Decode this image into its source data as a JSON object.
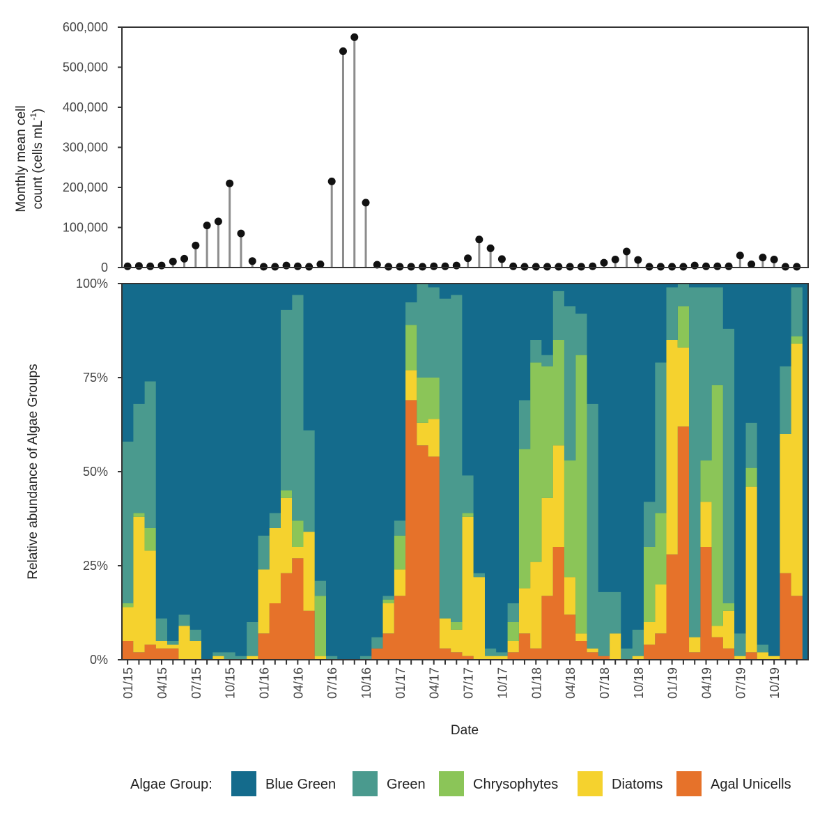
{
  "chart_data": [
    {
      "type": "lollipop",
      "ylabel_line1": "Monthly mean cell",
      "ylabel_line2": "count (cells mL",
      "ylabel_sup": "-1",
      "ylabel_close": ")",
      "ylim": [
        0,
        600000
      ],
      "yticks": [
        0,
        100000,
        200000,
        300000,
        400000,
        500000,
        600000
      ],
      "ytick_labels": [
        "0",
        "100,000",
        "200,000",
        "300,000",
        "400,000",
        "500,000",
        "600,000"
      ],
      "grid": false,
      "values": [
        3000,
        4000,
        3000,
        5000,
        15000,
        22000,
        55000,
        105000,
        115000,
        210000,
        85000,
        16000,
        2000,
        2000,
        5000,
        3000,
        2000,
        8000,
        215000,
        540000,
        575000,
        162000,
        7000,
        2000,
        2000,
        2000,
        2000,
        3000,
        3000,
        5000,
        23000,
        70000,
        48000,
        21000,
        3000,
        2000,
        2000,
        2000,
        2000,
        2000,
        2000,
        3000,
        12000,
        20000,
        40000,
        19000,
        2000,
        2000,
        2000,
        2000,
        5000,
        3000,
        3000,
        3000,
        30000,
        8000,
        25000,
        20000,
        2000,
        2000
      ]
    },
    {
      "type": "stacked_area",
      "xlabel": "Date",
      "ylabel": "Relative abundance of Algae Groups",
      "ylim": [
        0,
        1
      ],
      "yticks": [
        0,
        0.25,
        0.5,
        0.75,
        1.0
      ],
      "ytick_labels": [
        "0%",
        "25%",
        "50%",
        "75%",
        "100%"
      ],
      "x_tick_labels": [
        "01/15",
        "04/15",
        "07/15",
        "10/15",
        "01/16",
        "04/16",
        "07/16",
        "10/16",
        "01/17",
        "04/17",
        "07/17",
        "10/17",
        "01/18",
        "04/18",
        "07/18",
        "10/18",
        "01/19",
        "04/19",
        "07/19",
        "10/19"
      ],
      "x_start": "01/15",
      "n_months": 60,
      "legend_title": "Algae Group:",
      "legend_position": "bottom",
      "series": [
        {
          "name": "Agal Unicells",
          "color": "#e6722a",
          "values": [
            0.05,
            0.02,
            0.04,
            0.03,
            0.03,
            0.0,
            0.0,
            0.0,
            0.0,
            0.0,
            0.0,
            0.0,
            0.07,
            0.15,
            0.23,
            0.27,
            0.13,
            0.0,
            0.0,
            0.0,
            0.0,
            0.0,
            0.03,
            0.07,
            0.17,
            0.69,
            0.57,
            0.54,
            0.03,
            0.02,
            0.01,
            0.0,
            0.0,
            0.0,
            0.02,
            0.07,
            0.03,
            0.17,
            0.3,
            0.12,
            0.05,
            0.02,
            0.01,
            0.0,
            0.0,
            0.0,
            0.04,
            0.07,
            0.28,
            0.62,
            0.02,
            0.3,
            0.06,
            0.03,
            0.0,
            0.02,
            0.0,
            0.0,
            0.23,
            0.17
          ]
        },
        {
          "name": "Diatoms",
          "color": "#f5d22e",
          "values": [
            0.09,
            0.36,
            0.25,
            0.02,
            0.01,
            0.09,
            0.05,
            0.0,
            0.01,
            0.0,
            0.0,
            0.01,
            0.17,
            0.2,
            0.2,
            0.03,
            0.21,
            0.01,
            0.0,
            0.0,
            0.0,
            0.0,
            0.0,
            0.08,
            0.07,
            0.08,
            0.06,
            0.1,
            0.08,
            0.06,
            0.37,
            0.22,
            0.01,
            0.01,
            0.03,
            0.12,
            0.23,
            0.26,
            0.27,
            0.1,
            0.02,
            0.01,
            0.0,
            0.07,
            0.0,
            0.01,
            0.06,
            0.13,
            0.57,
            0.21,
            0.04,
            0.12,
            0.03,
            0.1,
            0.01,
            0.44,
            0.02,
            0.01,
            0.37,
            0.67
          ]
        },
        {
          "name": "Chrysophytes",
          "color": "#8bc558",
          "values": [
            0.01,
            0.01,
            0.06,
            0.0,
            0.0,
            0.0,
            0.0,
            0.0,
            0.0,
            0.0,
            0.0,
            0.0,
            0.0,
            0.0,
            0.02,
            0.07,
            0.0,
            0.16,
            0.0,
            0.0,
            0.0,
            0.0,
            0.0,
            0.01,
            0.09,
            0.12,
            0.12,
            0.11,
            0.0,
            0.02,
            0.01,
            0.0,
            0.0,
            0.0,
            0.05,
            0.37,
            0.53,
            0.35,
            0.28,
            0.31,
            0.74,
            0.0,
            0.0,
            0.0,
            0.0,
            0.0,
            0.2,
            0.19,
            0.0,
            0.11,
            0.0,
            0.11,
            0.64,
            0.02,
            0.0,
            0.05,
            0.0,
            0.0,
            0.0,
            0.02
          ]
        },
        {
          "name": "Green",
          "color": "#4a9a8e",
          "values": [
            0.43,
            0.29,
            0.39,
            0.06,
            0.01,
            0.03,
            0.03,
            0.0,
            0.01,
            0.02,
            0.01,
            0.09,
            0.09,
            0.04,
            0.48,
            0.6,
            0.27,
            0.04,
            0.01,
            0.0,
            0.0,
            0.01,
            0.03,
            0.01,
            0.04,
            0.06,
            0.25,
            0.24,
            0.85,
            0.87,
            0.1,
            0.01,
            0.02,
            0.01,
            0.05,
            0.13,
            0.06,
            0.03,
            0.13,
            0.41,
            0.11,
            0.65,
            0.17,
            0.11,
            0.03,
            0.07,
            0.12,
            0.4,
            0.14,
            0.06,
            0.93,
            0.46,
            0.26,
            0.73,
            0.06,
            0.12,
            0.02,
            0.0,
            0.18,
            0.13
          ]
        },
        {
          "name": "Blue Green",
          "color": "#146b8c",
          "values": [
            0.42,
            0.32,
            0.26,
            0.89,
            0.95,
            0.88,
            0.92,
            1.0,
            0.98,
            0.98,
            0.99,
            0.9,
            0.67,
            0.61,
            0.07,
            0.03,
            0.39,
            0.79,
            0.99,
            1.0,
            1.0,
            0.99,
            0.94,
            0.83,
            0.63,
            0.05,
            0.0,
            0.01,
            0.04,
            0.03,
            0.51,
            0.77,
            0.97,
            0.98,
            0.85,
            0.31,
            0.15,
            0.19,
            0.02,
            0.07,
            0.08,
            0.32,
            0.82,
            0.82,
            0.97,
            0.92,
            0.58,
            0.01,
            0.01,
            0.0,
            0.01,
            0.01,
            0.01,
            0.12,
            0.93,
            0.37,
            0.96,
            0.99,
            0.22,
            0.01
          ]
        }
      ]
    }
  ]
}
